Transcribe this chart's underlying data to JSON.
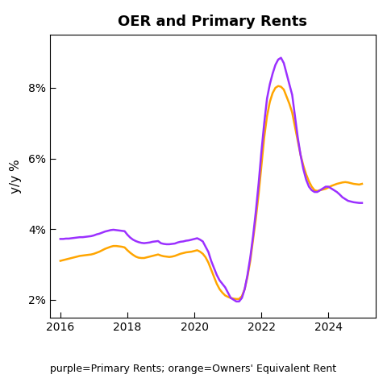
{
  "title": "OER and Primary Rents",
  "ylabel": "y/y %",
  "caption": "purple=Primary Rents; orange=Owners' Equivalent Rent",
  "ylim": [
    1.5,
    9.5
  ],
  "yticks": [
    2,
    4,
    6,
    8
  ],
  "ytick_labels": [
    "2%",
    "4%",
    "6%",
    "8%"
  ],
  "xlim_start": 2015.7,
  "xlim_end": 2025.4,
  "xticks": [
    2016,
    2018,
    2020,
    2022,
    2024
  ],
  "purple_color": "#9B30FF",
  "orange_color": "#FFA500",
  "primary_rents_dates": [
    2016.0,
    2016.083,
    2016.167,
    2016.25,
    2016.333,
    2016.417,
    2016.5,
    2016.583,
    2016.667,
    2016.75,
    2016.833,
    2016.917,
    2017.0,
    2017.083,
    2017.167,
    2017.25,
    2017.333,
    2017.417,
    2017.5,
    2017.583,
    2017.667,
    2017.75,
    2017.833,
    2017.917,
    2018.0,
    2018.083,
    2018.167,
    2018.25,
    2018.333,
    2018.417,
    2018.5,
    2018.583,
    2018.667,
    2018.75,
    2018.833,
    2018.917,
    2019.0,
    2019.083,
    2019.167,
    2019.25,
    2019.333,
    2019.417,
    2019.5,
    2019.583,
    2019.667,
    2019.75,
    2019.833,
    2019.917,
    2020.0,
    2020.083,
    2020.167,
    2020.25,
    2020.333,
    2020.417,
    2020.5,
    2020.583,
    2020.667,
    2020.75,
    2020.833,
    2020.917,
    2021.0,
    2021.083,
    2021.167,
    2021.25,
    2021.333,
    2021.417,
    2021.5,
    2021.583,
    2021.667,
    2021.75,
    2021.833,
    2021.917,
    2022.0,
    2022.083,
    2022.167,
    2022.25,
    2022.333,
    2022.417,
    2022.5,
    2022.583,
    2022.667,
    2022.75,
    2022.833,
    2022.917,
    2023.0,
    2023.083,
    2023.167,
    2023.25,
    2023.333,
    2023.417,
    2023.5,
    2023.583,
    2023.667,
    2023.75,
    2023.833,
    2023.917,
    2024.0,
    2024.083,
    2024.167,
    2024.25,
    2024.333,
    2024.417,
    2024.5,
    2024.583,
    2024.667,
    2024.75,
    2024.833,
    2024.917,
    2025.0
  ],
  "primary_rents_values": [
    3.72,
    3.72,
    3.73,
    3.73,
    3.74,
    3.75,
    3.76,
    3.77,
    3.77,
    3.78,
    3.79,
    3.8,
    3.82,
    3.85,
    3.87,
    3.9,
    3.93,
    3.95,
    3.97,
    3.98,
    3.97,
    3.96,
    3.95,
    3.94,
    3.84,
    3.76,
    3.7,
    3.66,
    3.63,
    3.61,
    3.6,
    3.61,
    3.62,
    3.64,
    3.65,
    3.66,
    3.6,
    3.58,
    3.57,
    3.57,
    3.58,
    3.59,
    3.62,
    3.64,
    3.65,
    3.67,
    3.68,
    3.7,
    3.72,
    3.74,
    3.7,
    3.65,
    3.5,
    3.35,
    3.1,
    2.9,
    2.7,
    2.55,
    2.45,
    2.35,
    2.2,
    2.05,
    2.0,
    1.95,
    1.95,
    2.05,
    2.3,
    2.7,
    3.2,
    3.8,
    4.5,
    5.3,
    6.2,
    7.0,
    7.7,
    8.1,
    8.4,
    8.65,
    8.8,
    8.85,
    8.7,
    8.4,
    8.1,
    7.8,
    7.2,
    6.6,
    6.1,
    5.7,
    5.4,
    5.2,
    5.1,
    5.05,
    5.05,
    5.1,
    5.15,
    5.2,
    5.2,
    5.15,
    5.1,
    5.05,
    4.98,
    4.9,
    4.85,
    4.8,
    4.78,
    4.76,
    4.75,
    4.74,
    4.74
  ],
  "oer_dates": [
    2016.0,
    2016.083,
    2016.167,
    2016.25,
    2016.333,
    2016.417,
    2016.5,
    2016.583,
    2016.667,
    2016.75,
    2016.833,
    2016.917,
    2017.0,
    2017.083,
    2017.167,
    2017.25,
    2017.333,
    2017.417,
    2017.5,
    2017.583,
    2017.667,
    2017.75,
    2017.833,
    2017.917,
    2018.0,
    2018.083,
    2018.167,
    2018.25,
    2018.333,
    2018.417,
    2018.5,
    2018.583,
    2018.667,
    2018.75,
    2018.833,
    2018.917,
    2019.0,
    2019.083,
    2019.167,
    2019.25,
    2019.333,
    2019.417,
    2019.5,
    2019.583,
    2019.667,
    2019.75,
    2019.833,
    2019.917,
    2020.0,
    2020.083,
    2020.167,
    2020.25,
    2020.333,
    2020.417,
    2020.5,
    2020.583,
    2020.667,
    2020.75,
    2020.833,
    2020.917,
    2021.0,
    2021.083,
    2021.167,
    2021.25,
    2021.333,
    2021.417,
    2021.5,
    2021.583,
    2021.667,
    2021.75,
    2021.833,
    2021.917,
    2022.0,
    2022.083,
    2022.167,
    2022.25,
    2022.333,
    2022.417,
    2022.5,
    2022.583,
    2022.667,
    2022.75,
    2022.833,
    2022.917,
    2023.0,
    2023.083,
    2023.167,
    2023.25,
    2023.333,
    2023.417,
    2023.5,
    2023.583,
    2023.667,
    2023.75,
    2023.833,
    2023.917,
    2024.0,
    2024.083,
    2024.167,
    2024.25,
    2024.333,
    2024.417,
    2024.5,
    2024.583,
    2024.667,
    2024.75,
    2024.833,
    2024.917,
    2025.0
  ],
  "oer_values": [
    3.1,
    3.12,
    3.14,
    3.16,
    3.18,
    3.2,
    3.22,
    3.24,
    3.25,
    3.26,
    3.27,
    3.28,
    3.3,
    3.33,
    3.36,
    3.4,
    3.44,
    3.47,
    3.5,
    3.52,
    3.52,
    3.51,
    3.5,
    3.48,
    3.4,
    3.33,
    3.27,
    3.22,
    3.19,
    3.18,
    3.18,
    3.2,
    3.22,
    3.24,
    3.26,
    3.28,
    3.25,
    3.23,
    3.22,
    3.21,
    3.22,
    3.24,
    3.27,
    3.3,
    3.32,
    3.34,
    3.35,
    3.36,
    3.38,
    3.4,
    3.36,
    3.3,
    3.2,
    3.05,
    2.85,
    2.65,
    2.45,
    2.3,
    2.2,
    2.12,
    2.08,
    2.05,
    2.03,
    2.02,
    2.02,
    2.1,
    2.3,
    2.65,
    3.1,
    3.7,
    4.3,
    5.0,
    5.8,
    6.6,
    7.2,
    7.6,
    7.85,
    8.0,
    8.05,
    8.03,
    7.95,
    7.75,
    7.55,
    7.3,
    6.9,
    6.5,
    6.1,
    5.8,
    5.55,
    5.35,
    5.2,
    5.1,
    5.08,
    5.1,
    5.12,
    5.14,
    5.18,
    5.22,
    5.25,
    5.28,
    5.3,
    5.32,
    5.33,
    5.32,
    5.3,
    5.28,
    5.27,
    5.26,
    5.28
  ]
}
